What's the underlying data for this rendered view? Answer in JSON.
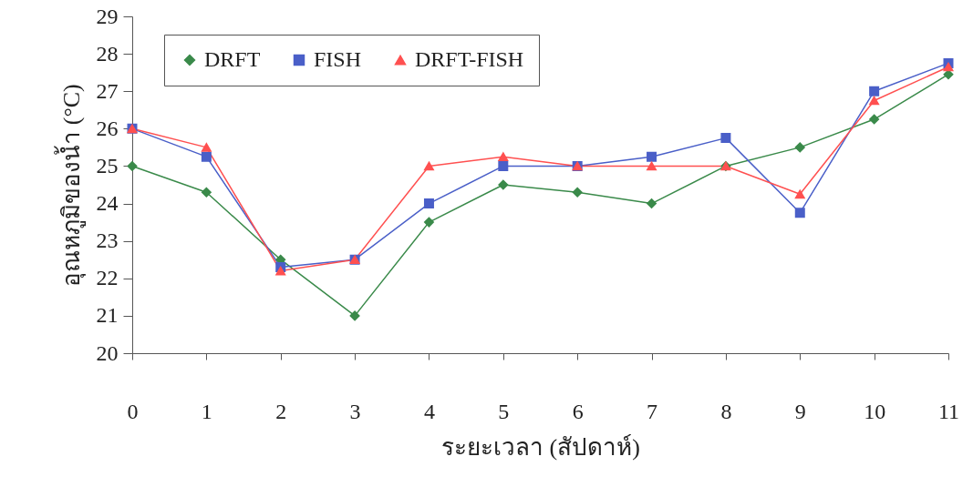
{
  "chart_data": {
    "type": "line",
    "xlabel": "ระยะเวลา (สัปดาห์)",
    "ylabel": "อุณหภูมิของน้ำ (°C)",
    "categories": [
      "0",
      "1",
      "2",
      "3",
      "4",
      "5",
      "6",
      "7",
      "8",
      "9",
      "10",
      "11"
    ],
    "series": [
      {
        "name": "DRFT",
        "color": "#3a8a4a",
        "marker": "diamond",
        "values": [
          25,
          24.3,
          22.5,
          21,
          23.5,
          24.5,
          24.3,
          24,
          25,
          25.5,
          26.25,
          27.45
        ]
      },
      {
        "name": "FISH",
        "color": "#4a5fc8",
        "marker": "square",
        "values": [
          26,
          25.25,
          22.3,
          22.5,
          24,
          25,
          25,
          25.25,
          25.75,
          23.75,
          27,
          27.75
        ]
      },
      {
        "name": "DRFT-FISH",
        "color": "#ff5050",
        "marker": "triangle",
        "values": [
          26,
          25.5,
          22.2,
          22.5,
          25,
          25.25,
          25,
          25,
          25,
          24.25,
          26.75,
          27.65
        ]
      }
    ],
    "ylim": [
      20,
      29
    ],
    "yticks": [
      20,
      21,
      22,
      23,
      24,
      25,
      26,
      27,
      28,
      29
    ],
    "legend": "top left"
  }
}
